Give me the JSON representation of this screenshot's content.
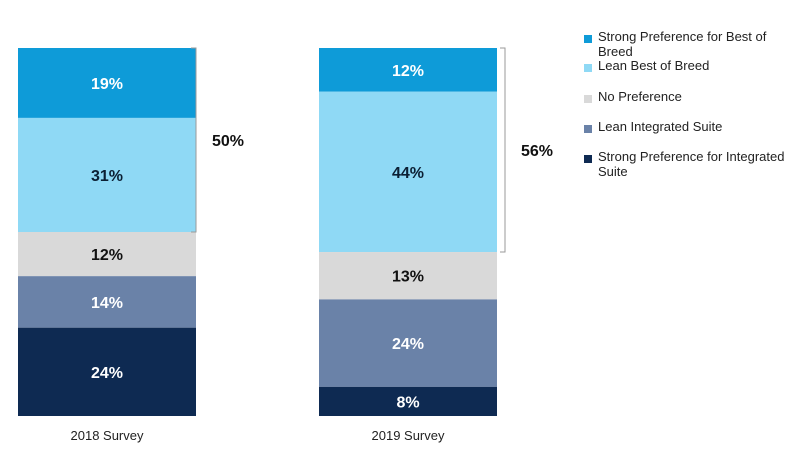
{
  "chart_data": {
    "type": "bar",
    "stacked": true,
    "categories": [
      "2018 Survey",
      "2019 Survey"
    ],
    "series": [
      {
        "name": "Strong Preference for Best of Breed",
        "values": [
          19,
          12
        ],
        "color": "#0E9BD8",
        "label_color": "#ffffff"
      },
      {
        "name": "Lean Best of Breed",
        "values": [
          31,
          44
        ],
        "color": "#8FD9F5",
        "label_color": "#0b1f33"
      },
      {
        "name": "No Preference",
        "values": [
          12,
          13
        ],
        "color": "#D9D9D9",
        "label_color": "#111111"
      },
      {
        "name": "Lean Integrated Suite",
        "values": [
          14,
          24
        ],
        "color": "#6A82A8",
        "label_color": "#ffffff"
      },
      {
        "name": "Strong Preference for Integrated Suite",
        "values": [
          24,
          8
        ],
        "color": "#0E2A52",
        "label_color": "#ffffff"
      }
    ],
    "segment_labels": [
      [
        "19%",
        "12%"
      ],
      [
        "31%",
        "44%"
      ],
      [
        "12%",
        "13%"
      ],
      [
        "14%",
        "24%"
      ],
      [
        "24%",
        "8%"
      ]
    ],
    "brackets": [
      {
        "category": "2018 Survey",
        "label": "50%",
        "spans_series": [
          0,
          1
        ]
      },
      {
        "category": "2019 Survey",
        "label": "56%",
        "spans_series": [
          0,
          1
        ]
      }
    ],
    "ylim": [
      0,
      100
    ],
    "legend_position": "right",
    "grid": false,
    "title": "",
    "xlabel": "",
    "ylabel": ""
  }
}
